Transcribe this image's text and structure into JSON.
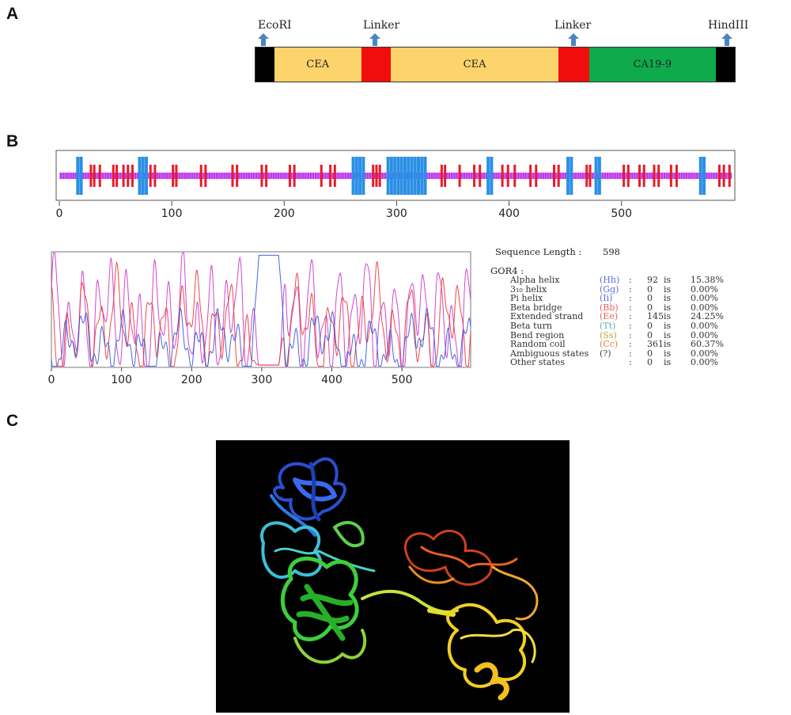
{
  "panels": {
    "a": "A",
    "b": "B",
    "c": "C"
  },
  "construct": {
    "sites": [
      {
        "label": "EcoRI"
      },
      {
        "label": "Linker"
      },
      {
        "label": "Linker"
      },
      {
        "label": "HindIII"
      }
    ],
    "segments": [
      {
        "label": "",
        "color": "#000000",
        "length": 24
      },
      {
        "label": "CEA",
        "color": "#fdd36b",
        "length": 110
      },
      {
        "label": "",
        "color": "#f20d0d",
        "length": 38
      },
      {
        "label": "CEA",
        "color": "#fdd36b",
        "length": 212
      },
      {
        "label": "",
        "color": "#f20d0d",
        "length": 39
      },
      {
        "label": "CA19-9",
        "color": "#0eaa4c",
        "length": 161
      },
      {
        "label": "",
        "color": "#000000",
        "length": 24
      }
    ],
    "arrow_color": "#4a86c0"
  },
  "track": {
    "x_ticks": [
      0,
      100,
      200,
      300,
      400,
      500
    ],
    "x_max": 598,
    "coil_color": "#c033f0",
    "strand_color": "#e81c2c",
    "helix_color": "#2b8fe6",
    "helix_positions": [
      15,
      18,
      70,
      73,
      76,
      260,
      263,
      266,
      269,
      291,
      294,
      297,
      300,
      303,
      306,
      309,
      312,
      315,
      318,
      321,
      324,
      380,
      383,
      451,
      454,
      476,
      479,
      569,
      572
    ],
    "strand_positions": [
      27,
      30,
      35,
      47,
      50,
      56,
      60,
      64,
      80,
      84,
      100,
      103,
      125,
      129,
      153,
      157,
      179,
      183,
      204,
      208,
      232,
      240,
      244,
      278,
      281,
      284,
      339,
      342,
      355,
      368,
      373,
      393,
      398,
      404,
      418,
      423,
      439,
      443,
      468,
      471,
      501,
      505,
      515,
      519,
      528,
      532,
      543,
      548,
      586,
      590,
      595
    ]
  },
  "chart_data": {
    "type": "line",
    "x_ticks": [
      0,
      100,
      200,
      300,
      400,
      500
    ],
    "xlim": [
      0,
      598
    ],
    "ylim": [
      0,
      1
    ],
    "series": [
      {
        "color": "#cc33cc",
        "freq": [
          0.31,
          0.17,
          0.07
        ],
        "amp": [
          0.32,
          0.18,
          0.1
        ],
        "base": 0.42
      },
      {
        "color": "#ee3333",
        "freq": [
          0.27,
          0.12,
          0.05
        ],
        "amp": [
          0.26,
          0.16,
          0.08
        ],
        "base": 0.35
      },
      {
        "color": "#3355dd",
        "freq": [
          0.23,
          0.09,
          0.04
        ],
        "amp": [
          0.16,
          0.1,
          0.06
        ],
        "base": 0.18
      }
    ],
    "helix_peak": [
      296,
      324
    ]
  },
  "stats": {
    "seq_label": "Sequence Length :",
    "seq_value": "598",
    "method": "GOR4 :",
    "rows": [
      {
        "name": "Alpha helix",
        "code": "(Hh)",
        "colon": ":",
        "count": "92",
        "is": "is",
        "pct": "15.38%",
        "code_color": "#5b6ee0"
      },
      {
        "name": "3₁₀ helix",
        "code": "(Gg)",
        "colon": ":",
        "count": "0",
        "is": "is",
        "pct": "0.00%",
        "code_color": "#5b6ee0"
      },
      {
        "name": "Pi helix",
        "code": "(Ii)",
        "colon": ":",
        "count": "0",
        "is": "is",
        "pct": "0.00%",
        "code_color": "#5b6ee0"
      },
      {
        "name": "Beta bridge",
        "code": "(Bb)",
        "colon": ":",
        "count": "0",
        "is": "is",
        "pct": "0.00%",
        "code_color": "#e06060"
      },
      {
        "name": "Extended strand",
        "code": "(Ee)",
        "colon": ":",
        "count": "145",
        "is": "is",
        "pct": "24.25%",
        "code_color": "#e06060"
      },
      {
        "name": "Beta turn",
        "code": "(Tt)",
        "colon": ":",
        "count": "0",
        "is": "is",
        "pct": "0.00%",
        "code_color": "#5bb0b0"
      },
      {
        "name": "Bend region",
        "code": "(Ss)",
        "colon": ":",
        "count": "0",
        "is": "is",
        "pct": "0.00%",
        "code_color": "#c0a040"
      },
      {
        "name": "Random coil",
        "code": "(Cc)",
        "colon": ":",
        "count": "361",
        "is": "is",
        "pct": "60.37%",
        "code_color": "#e08040"
      },
      {
        "name": "Ambiguous states",
        "code": "(?)",
        "colon": ":",
        "count": "0",
        "is": "is",
        "pct": "0.00%",
        "code_color": "#444444"
      },
      {
        "name": "Other states",
        "code": "",
        "colon": ":",
        "count": "0",
        "is": "is",
        "pct": "0.00%",
        "code_color": "#444444"
      }
    ]
  },
  "structure": {
    "background": "#000000"
  }
}
